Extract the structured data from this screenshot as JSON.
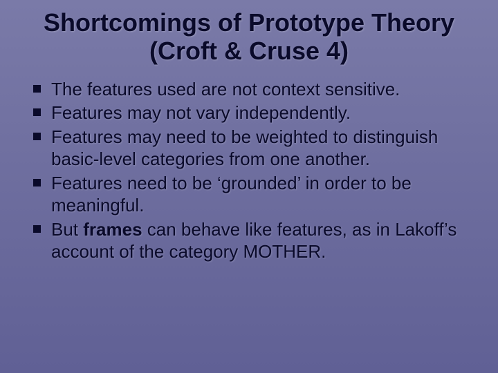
{
  "slide": {
    "background_gradient_top": "#7a7aa8",
    "background_gradient_middle": "#6d6d9e",
    "background_gradient_bottom": "#606095",
    "title_color": "#0a0a2a",
    "text_color": "#0a0a2a",
    "bullet_color": "#0a0a2a",
    "title_fontsize": 36,
    "body_fontsize": 26,
    "title": "Shortcomings of Prototype Theory (Croft & Cruse 4)",
    "bullets": [
      {
        "text": "The features used are not context sensitive."
      },
      {
        "text": "Features may not vary independently."
      },
      {
        "text": "Features may need to be weighted to distinguish basic-level categories from one another."
      },
      {
        "text": "Features need to be ‘grounded’ in order to be meaningful."
      },
      {
        "prefix": "But ",
        "bold": "frames",
        "suffix": " can behave like features, as in Lakoff’s account of the category MOTHER."
      }
    ]
  }
}
